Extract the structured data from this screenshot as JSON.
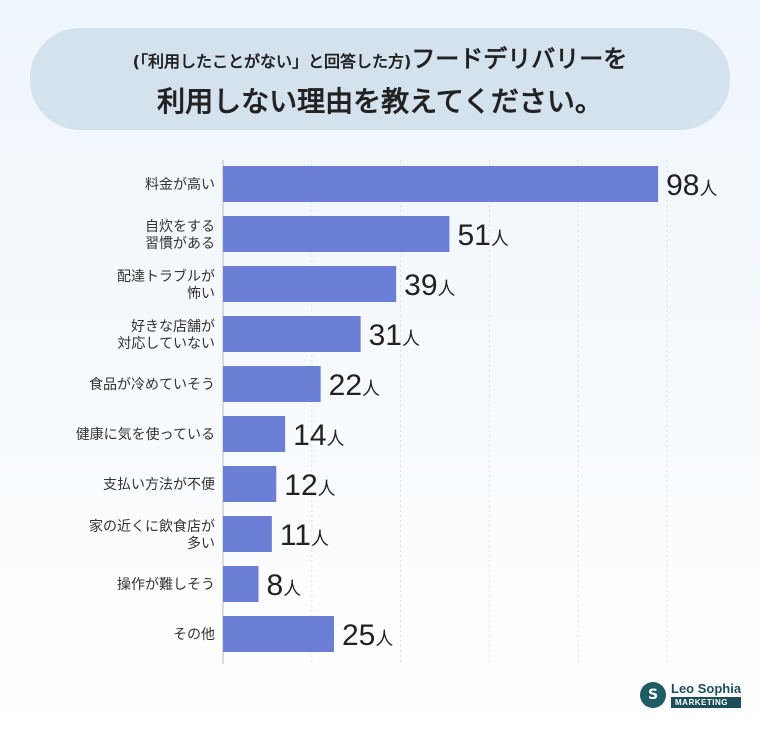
{
  "title": {
    "prefix": "(「利用したことがない」と回答した方)",
    "line1": "フードデリバリーを",
    "line2": "利用しない理由を教えてください。"
  },
  "chart_data": {
    "type": "bar",
    "orientation": "horizontal",
    "unit": "人",
    "categories": [
      [
        "料金が高い"
      ],
      [
        "自炊をする",
        "習慣がある"
      ],
      [
        "配達トラブルが",
        "怖い"
      ],
      [
        "好きな店舗が",
        "対応していない"
      ],
      [
        "食品が冷めていそう"
      ],
      [
        "健康に気を使っている"
      ],
      [
        "支払い方法が不便"
      ],
      [
        "家の近くに飲食店が",
        "多い"
      ],
      [
        "操作が難しそう"
      ],
      [
        "その他"
      ]
    ],
    "values": [
      98,
      51,
      39,
      31,
      22,
      14,
      12,
      11,
      8,
      25
    ],
    "xlim": [
      0,
      100
    ],
    "grid": true,
    "bar_color": "#6b7fd7"
  },
  "logo": {
    "mark": "S",
    "name": "Leo Sophia",
    "sub": "MARKETING"
  }
}
